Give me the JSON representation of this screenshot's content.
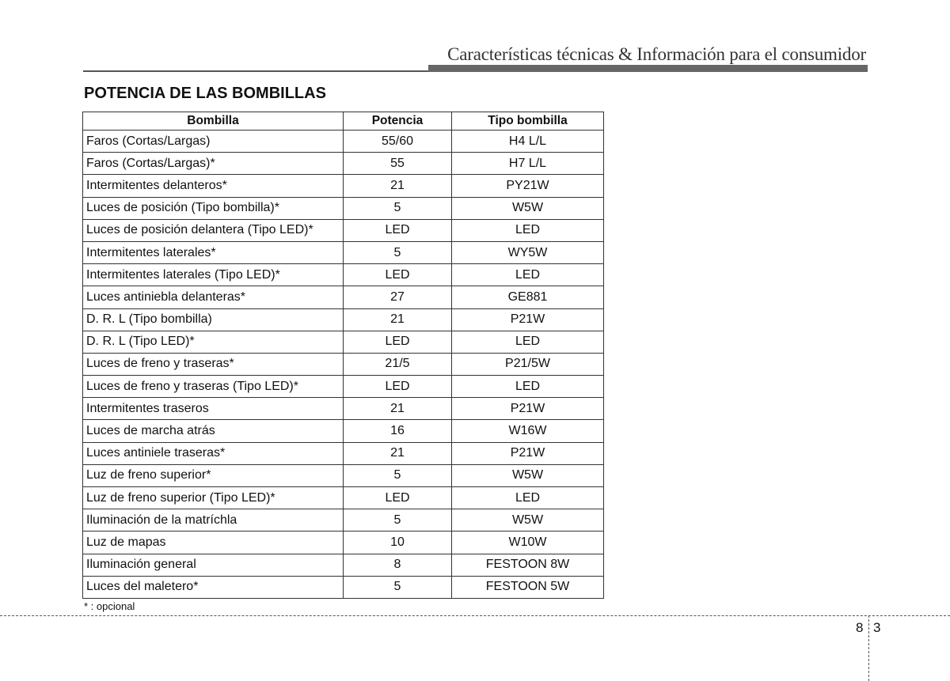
{
  "header": {
    "section_title": "Características técnicas & Información para el consumidor"
  },
  "title": "POTENCIA DE LAS BOMBILLAS",
  "table": {
    "columns": [
      "Bombilla",
      "Potencia",
      "Tipo bombilla"
    ],
    "rows": [
      [
        "Faros (Cortas/Largas)",
        "55/60",
        "H4 L/L"
      ],
      [
        "Faros (Cortas/Largas)*",
        "55",
        "H7 L/L"
      ],
      [
        "Intermitentes delanteros*",
        "21",
        "PY21W"
      ],
      [
        "Luces de posición (Tipo bombilla)*",
        "5",
        "W5W"
      ],
      [
        "Luces de posición delantera (Tipo LED)*",
        "LED",
        "LED"
      ],
      [
        "Intermitentes laterales*",
        "5",
        "WY5W"
      ],
      [
        "Intermitentes laterales (Tipo LED)*",
        "LED",
        "LED"
      ],
      [
        "Luces antiniebla delanteras*",
        "27",
        "GE881"
      ],
      [
        "D. R. L (Tipo bombilla)",
        "21",
        "P21W"
      ],
      [
        "D. R. L (Tipo LED)*",
        "LED",
        "LED"
      ],
      [
        "Luces de freno y traseras*",
        "21/5",
        "P21/5W"
      ],
      [
        "Luces de freno y traseras (Tipo LED)*",
        "LED",
        "LED"
      ],
      [
        "Intermitentes traseros",
        "21",
        "P21W"
      ],
      [
        "Luces de marcha atrás",
        "16",
        "W16W"
      ],
      [
        "Luces antiniele traseras*",
        "21",
        "P21W"
      ],
      [
        "Luz de freno superior*",
        "5",
        "W5W"
      ],
      [
        "Luz de freno superior (Tipo LED)*",
        "LED",
        "LED"
      ],
      [
        "Iluminación de la matríchla",
        "5",
        "W5W"
      ],
      [
        "Luz de mapas",
        "10",
        "W10W"
      ],
      [
        "Iluminación general",
        "8",
        "FESTOON 8W"
      ],
      [
        "Luces del maletero*",
        "5",
        "FESTOON 5W"
      ]
    ]
  },
  "footnote": "* : opcional",
  "page": {
    "chapter": "8",
    "number": "3"
  }
}
